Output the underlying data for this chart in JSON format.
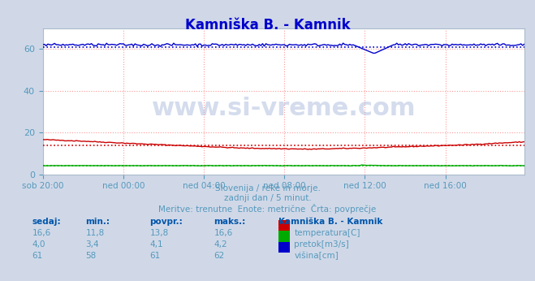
{
  "title": "Kamniška B. - Kamnik",
  "title_color": "#0000cc",
  "bg_color": "#d0d8e8",
  "plot_bg_color": "#ffffff",
  "grid_color": "#ff9999",
  "xlabel_color": "#5599bb",
  "text_color": "#5599bb",
  "watermark_text": "www.si-vreme.com",
  "subtitle1": "Slovenija / reke in morje.",
  "subtitle2": "zadnji dan / 5 minut.",
  "subtitle3": "Meritve: trenutne  Enote: metrične  Črta: povprečje",
  "xtick_labels": [
    "sob 20:00",
    "ned 00:00",
    "ned 04:00",
    "ned 08:00",
    "ned 12:00",
    "ned 16:00"
  ],
  "xtick_positions": [
    0,
    48,
    96,
    144,
    192,
    240
  ],
  "total_points": 288,
  "ylim": [
    0,
    70
  ],
  "yticks": [
    0,
    20,
    40,
    60
  ],
  "temp_color": "#cc0000",
  "flow_color": "#00aa00",
  "height_color": "#0000cc",
  "avg_temp": 13.8,
  "avg_flow": 4.1,
  "avg_height": 61,
  "table_headers": [
    "sedaj:",
    "min.:",
    "povpr.:",
    "maks.:"
  ],
  "table_data": [
    [
      "16,6",
      "11,8",
      "13,8",
      "16,6"
    ],
    [
      "4,0",
      "3,4",
      "4,1",
      "4,2"
    ],
    [
      "61",
      "58",
      "61",
      "62"
    ]
  ],
  "legend_labels": [
    "temperatura[C]",
    "pretok[m3/s]",
    "višina[cm]"
  ],
  "legend_colors": [
    "#cc0000",
    "#00aa00",
    "#0000cc"
  ],
  "station_label": "Kamniška B. - Kamnik"
}
